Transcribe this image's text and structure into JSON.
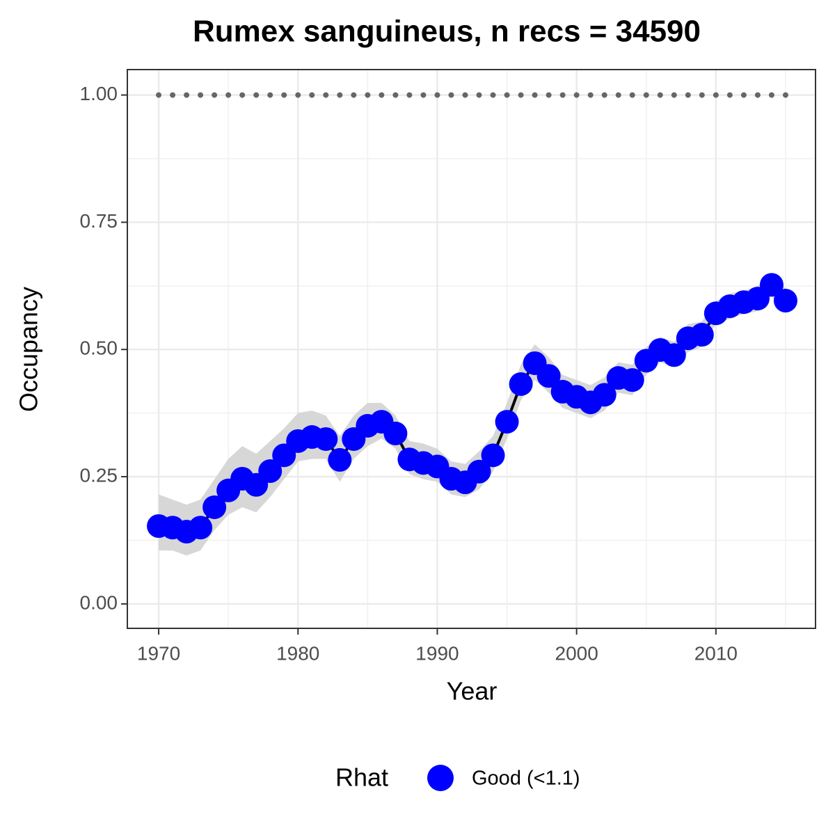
{
  "chart_data": {
    "type": "line",
    "title": "Rumex sanguineus, n recs = 34590",
    "x_label": "Year",
    "y_label": "Occupancy",
    "x": [
      1970,
      1971,
      1972,
      1973,
      1974,
      1975,
      1976,
      1977,
      1978,
      1979,
      1980,
      1981,
      1982,
      1983,
      1984,
      1985,
      1986,
      1987,
      1988,
      1989,
      1990,
      1991,
      1992,
      1993,
      1994,
      1995,
      1996,
      1997,
      1998,
      1999,
      2000,
      2001,
      2002,
      2003,
      2004,
      2005,
      2006,
      2007,
      2008,
      2009,
      2010,
      2011,
      2012,
      2013,
      2014,
      2015
    ],
    "series": [
      {
        "name": "Good (<1.1)",
        "color": "#0000ff",
        "values": [
          0.153,
          0.15,
          0.142,
          0.15,
          0.19,
          0.223,
          0.246,
          0.234,
          0.261,
          0.292,
          0.32,
          0.328,
          0.324,
          0.283,
          0.324,
          0.35,
          0.358,
          0.335,
          0.284,
          0.277,
          0.27,
          0.246,
          0.239,
          0.26,
          0.292,
          0.358,
          0.432,
          0.473,
          0.448,
          0.417,
          0.407,
          0.396,
          0.411,
          0.444,
          0.44,
          0.478,
          0.499,
          0.489,
          0.522,
          0.529,
          0.571,
          0.585,
          0.593,
          0.6,
          0.627,
          0.596
        ]
      }
    ],
    "band": {
      "color": "#d3d3d3",
      "upper": [
        0.215,
        0.205,
        0.195,
        0.205,
        0.245,
        0.285,
        0.31,
        0.295,
        0.32,
        0.345,
        0.375,
        0.38,
        0.37,
        0.33,
        0.37,
        0.395,
        0.395,
        0.37,
        0.32,
        0.315,
        0.305,
        0.28,
        0.275,
        0.3,
        0.33,
        0.395,
        0.47,
        0.51,
        0.485,
        0.45,
        0.44,
        0.43,
        0.445,
        0.475,
        0.47,
        0.505,
        0.525,
        0.515,
        0.55,
        0.555,
        0.595,
        0.61,
        0.615,
        0.625,
        0.65,
        0.62
      ],
      "lower": [
        0.105,
        0.105,
        0.095,
        0.105,
        0.145,
        0.175,
        0.19,
        0.18,
        0.21,
        0.245,
        0.28,
        0.285,
        0.285,
        0.24,
        0.285,
        0.31,
        0.325,
        0.305,
        0.255,
        0.245,
        0.24,
        0.215,
        0.21,
        0.225,
        0.26,
        0.325,
        0.4,
        0.44,
        0.415,
        0.385,
        0.375,
        0.365,
        0.38,
        0.415,
        0.41,
        0.45,
        0.475,
        0.465,
        0.495,
        0.505,
        0.55,
        0.56,
        0.57,
        0.575,
        0.605,
        0.57
      ]
    },
    "reference": {
      "color": "#666666",
      "values": [
        1,
        1,
        1,
        1,
        1,
        1,
        1,
        1,
        1,
        1,
        1,
        1,
        1,
        1,
        1,
        1,
        1,
        1,
        1,
        1,
        1,
        1,
        1,
        1,
        1,
        1,
        1,
        1,
        1,
        1,
        1,
        1,
        1,
        1,
        1,
        1,
        1,
        1,
        1,
        1,
        1,
        1,
        1,
        1,
        1,
        1
      ]
    },
    "legend_title": "Rhat",
    "legend": "bottom",
    "grid": true,
    "xlim": [
      1967.75,
      2017.15
    ],
    "ylim": [
      -0.048,
      1.05
    ],
    "xticks": [
      1970,
      1980,
      1990,
      2000,
      2010
    ],
    "yticks": [
      {
        "value": 0,
        "label": "0.00"
      },
      {
        "value": 0.25,
        "label": "0.25"
      },
      {
        "value": 0.5,
        "label": "0.50"
      },
      {
        "value": 0.75,
        "label": "0.75"
      },
      {
        "value": 1,
        "label": "1.00"
      }
    ]
  }
}
